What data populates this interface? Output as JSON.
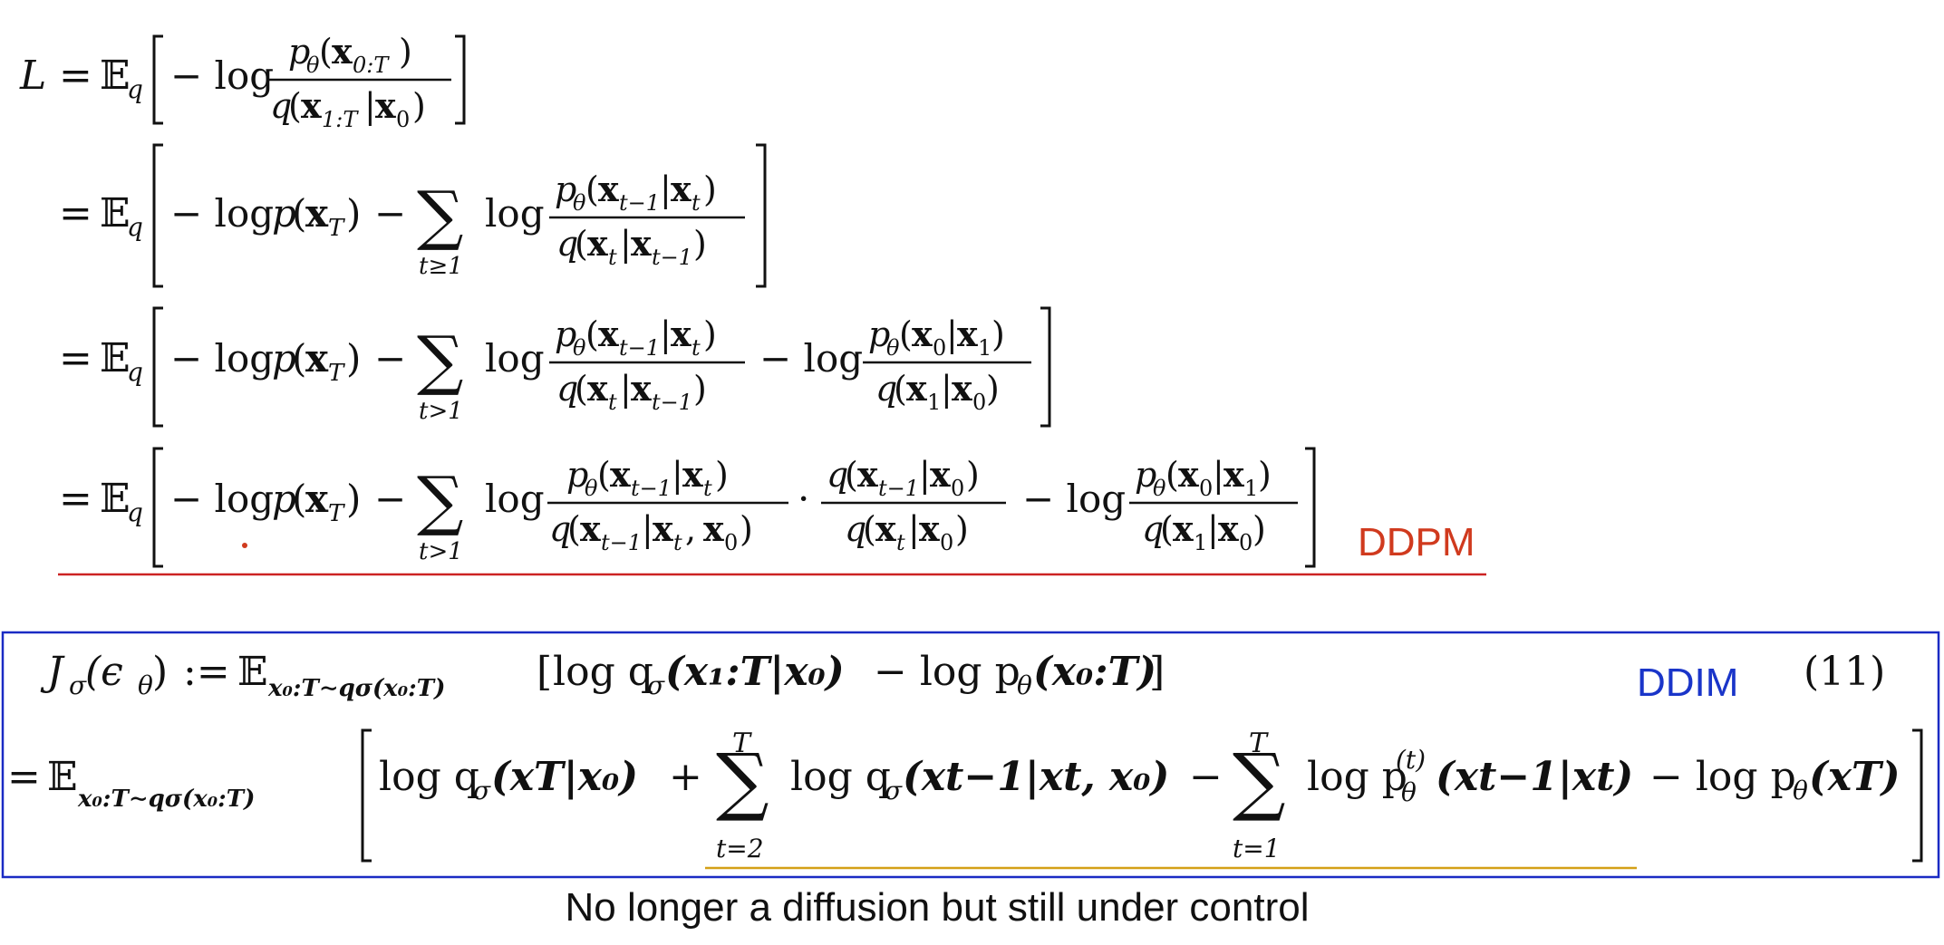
{
  "labels": {
    "ddpm": "DDPM",
    "ddim": "DDIM",
    "eq_number": "(11)",
    "caption": "No longer a diffusion but still under control"
  },
  "colors": {
    "ddpm_label": "#d03a1e",
    "ddpm_rule": "#cc2222",
    "ddim_label": "#1a35c9",
    "ddim_box": "#1a2bc4",
    "ddim_underline": "#d4a017",
    "text": "#111111"
  },
  "ddpm": {
    "lhs": "L",
    "equals": "=",
    "expectation": "𝔼",
    "exp_sub": "q",
    "minus_log": "− log",
    "log": "log",
    "minus": "−",
    "cdot": "·",
    "sum": "∑",
    "sub_t_ge_1": "t≥1",
    "sub_t_gt_1": "t>1",
    "line1": {
      "num": {
        "p": "p",
        "theta": "θ",
        "open": "(",
        "x": "x",
        "xsub": "0:T",
        "close": ")"
      },
      "den": {
        "q": "q",
        "open": "(",
        "x1": "x",
        "x1sub": "1:T",
        "bar": "|",
        "x2": "x",
        "x2sub": "0",
        "close": ")"
      }
    },
    "term_pxT": {
      "p": "p",
      "open": "(",
      "x": "x",
      "sub": "T",
      "close": ")"
    },
    "frac_a": {
      "num": {
        "p": "p",
        "theta": "θ",
        "open": "(",
        "x1": "x",
        "x1sub": "t−1",
        "bar": "|",
        "x2": "x",
        "x2sub": "t",
        "close": ")"
      },
      "den": {
        "q": "q",
        "open": "(",
        "x1": "x",
        "x1sub": "t",
        "bar": "|",
        "x2": "x",
        "x2sub": "t−1",
        "close": ")"
      }
    },
    "frac_b": {
      "num": {
        "p": "p",
        "theta": "θ",
        "open": "(",
        "x1": "x",
        "x1sub": "0",
        "bar": "|",
        "x2": "x",
        "x2sub": "1",
        "close": ")"
      },
      "den": {
        "q": "q",
        "open": "(",
        "x1": "x",
        "x1sub": "1",
        "bar": "|",
        "x2": "x",
        "x2sub": "0",
        "close": ")"
      }
    },
    "frac_c": {
      "num": {
        "p": "p",
        "theta": "θ",
        "open": "(",
        "x1": "x",
        "x1sub": "t−1",
        "bar": "|",
        "x2": "x",
        "x2sub": "t",
        "close": ")"
      },
      "den": {
        "q": "q",
        "open": "(",
        "x1": "x",
        "x1sub": "t−1",
        "bar": "|",
        "x2": "x",
        "x2sub": "t",
        "comma": ",",
        "x3": "x",
        "x3sub": "0",
        "close": ")"
      }
    },
    "frac_d": {
      "num": {
        "q": "q",
        "open": "(",
        "x1": "x",
        "x1sub": "t−1",
        "bar": "|",
        "x2": "x",
        "x2sub": "0",
        "close": ")"
      },
      "den": {
        "q": "q",
        "open": "(",
        "x1": "x",
        "x1sub": "t",
        "bar": "|",
        "x2": "x",
        "x2sub": "0",
        "close": ")"
      }
    }
  },
  "ddim": {
    "line1": {
      "J": "J",
      "sigma": "σ",
      "arg": "(ϵ",
      "theta": "θ",
      "close": ")",
      "defeq": ":=",
      "expectation": "𝔼",
      "exp_sub": "x₀:T∼qσ(x₀:T)",
      "bracket_open": "[",
      "log_q": "log q",
      "q_args": "(x₁:T|x₀)",
      "minus_log_p": "− log p",
      "p_args": "(x₀:T)",
      "bracket_close": "]"
    },
    "line2": {
      "equals": "=",
      "expectation": "𝔼",
      "exp_sub": "x₀:T∼qσ(x₀:T)",
      "log_q": "log q",
      "sigma": "σ",
      "t1_args": "(xT|x₀)",
      "plus": "+",
      "sum": "∑",
      "sum1_top": "T",
      "sum1_bot": "t=2",
      "t2_args": "(xt−1|xt, x₀)",
      "minus": "−",
      "sum2_top": "T",
      "sum2_bot": "t=1",
      "log_p": "log p",
      "theta": "θ",
      "p_sup": "(t)",
      "t3_args": "(xt−1|xt)",
      "minus_log_p": "− log p",
      "t4_args": "(xT)"
    }
  }
}
